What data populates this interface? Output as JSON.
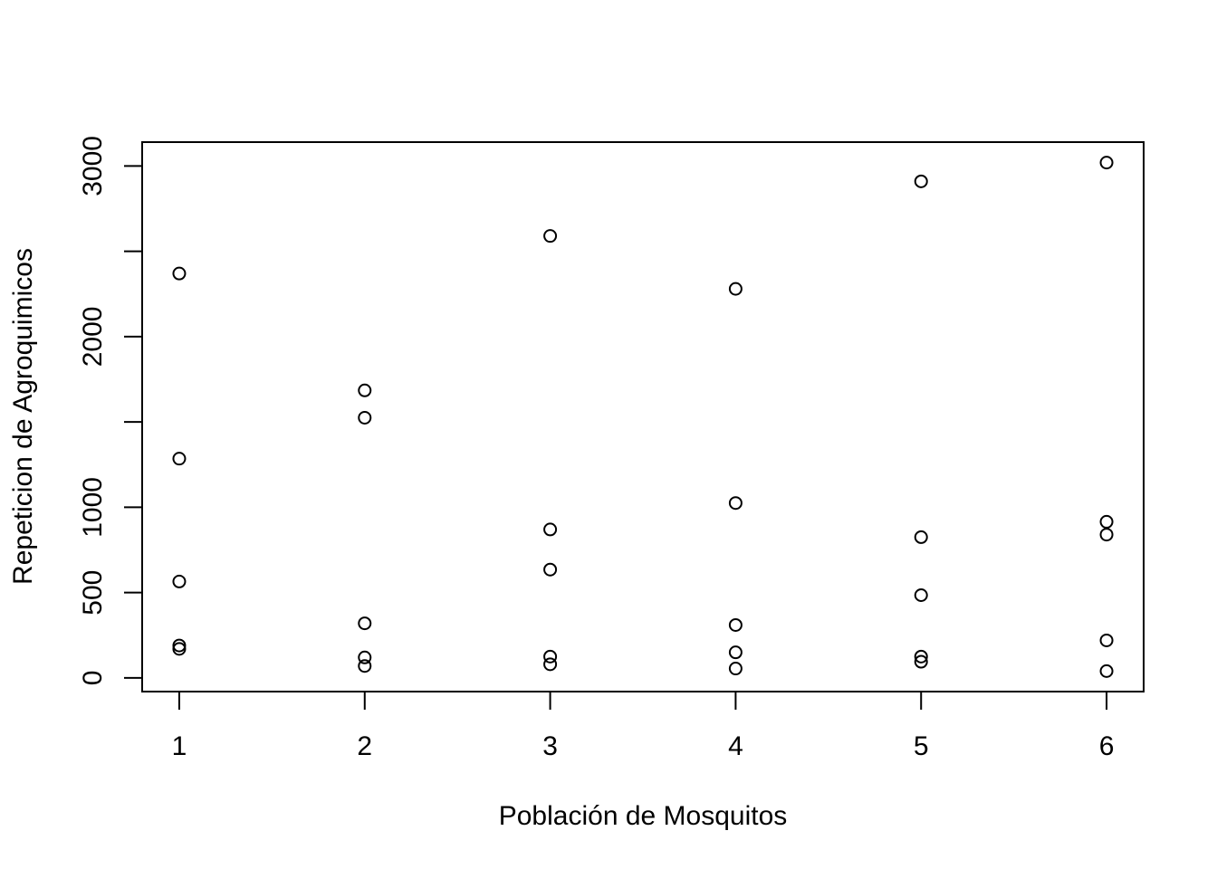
{
  "chart_data": {
    "type": "scatter",
    "title": "",
    "xlabel": "Población de Mosquitos",
    "ylabel": "Repeticion de Agroquimicos",
    "xlim": [
      0.8,
      6.2
    ],
    "ylim": [
      -80,
      3140
    ],
    "x_ticks": [
      1,
      2,
      3,
      4,
      5,
      6
    ],
    "x_tick_labels": [
      "1",
      "2",
      "3",
      "4",
      "5",
      "6"
    ],
    "y_ticks": [
      0,
      500,
      1000,
      1500,
      2000,
      2500,
      3000
    ],
    "y_tick_labels": [
      "0",
      "500",
      "1000",
      "",
      "2000",
      "",
      "3000"
    ],
    "grid": false,
    "legend": "none",
    "marker": "open-circle",
    "colors": {
      "marker": "#000000",
      "axis": "#000000",
      "background": "#ffffff"
    },
    "points": [
      {
        "x": 1,
        "y": 2370
      },
      {
        "x": 1,
        "y": 1285
      },
      {
        "x": 1,
        "y": 565
      },
      {
        "x": 1,
        "y": 190
      },
      {
        "x": 1,
        "y": 170
      },
      {
        "x": 2,
        "y": 1685
      },
      {
        "x": 2,
        "y": 1525
      },
      {
        "x": 2,
        "y": 320
      },
      {
        "x": 2,
        "y": 120
      },
      {
        "x": 2,
        "y": 70
      },
      {
        "x": 3,
        "y": 2590
      },
      {
        "x": 3,
        "y": 870
      },
      {
        "x": 3,
        "y": 635
      },
      {
        "x": 3,
        "y": 125
      },
      {
        "x": 3,
        "y": 80
      },
      {
        "x": 4,
        "y": 2280
      },
      {
        "x": 4,
        "y": 1025
      },
      {
        "x": 4,
        "y": 310
      },
      {
        "x": 4,
        "y": 150
      },
      {
        "x": 4,
        "y": 55
      },
      {
        "x": 5,
        "y": 2910
      },
      {
        "x": 5,
        "y": 825
      },
      {
        "x": 5,
        "y": 485
      },
      {
        "x": 5,
        "y": 125
      },
      {
        "x": 5,
        "y": 95
      },
      {
        "x": 6,
        "y": 3020
      },
      {
        "x": 6,
        "y": 915
      },
      {
        "x": 6,
        "y": 840
      },
      {
        "x": 6,
        "y": 220
      },
      {
        "x": 6,
        "y": 40
      }
    ]
  }
}
